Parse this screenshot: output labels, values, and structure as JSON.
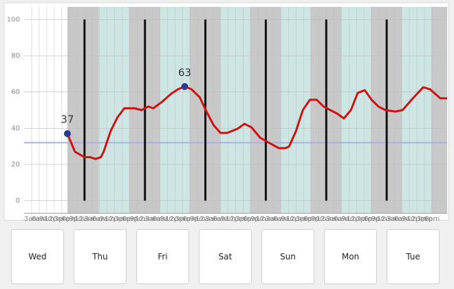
{
  "chart_data": {
    "type": "line",
    "xlim": [
      0,
      168
    ],
    "ylim": [
      -7,
      107
    ],
    "yticks": [
      0,
      20,
      40,
      60,
      80,
      100
    ],
    "xticks": [
      {
        "value": 3,
        "label": "3am"
      },
      {
        "value": 6,
        "label": "6am"
      },
      {
        "value": 9,
        "label": "9am"
      },
      {
        "value": 12,
        "label": "12pm"
      },
      {
        "value": 15,
        "label": "3pm"
      },
      {
        "value": 18,
        "label": "6pm"
      },
      {
        "value": 21,
        "label": "9pm"
      },
      {
        "value": 24,
        "label": "12am"
      },
      {
        "value": 27,
        "label": "3am"
      },
      {
        "value": 30,
        "label": "6am"
      },
      {
        "value": 33,
        "label": "9am"
      },
      {
        "value": 36,
        "label": "12pm"
      },
      {
        "value": 39,
        "label": "3pm"
      },
      {
        "value": 42,
        "label": "6pm"
      },
      {
        "value": 45,
        "label": "9pm"
      },
      {
        "value": 48,
        "label": "12am"
      },
      {
        "value": 51,
        "label": "3am"
      },
      {
        "value": 54,
        "label": "6am"
      },
      {
        "value": 57,
        "label": "9am"
      },
      {
        "value": 60,
        "label": "12pm"
      },
      {
        "value": 63,
        "label": "3pm"
      },
      {
        "value": 66,
        "label": "6pm"
      },
      {
        "value": 69,
        "label": "9pm"
      },
      {
        "value": 72,
        "label": "12am"
      },
      {
        "value": 75,
        "label": "3am"
      },
      {
        "value": 78,
        "label": "6am"
      },
      {
        "value": 81,
        "label": "9am"
      },
      {
        "value": 84,
        "label": "12pm"
      },
      {
        "value": 87,
        "label": "3pm"
      },
      {
        "value": 90,
        "label": "6pm"
      },
      {
        "value": 93,
        "label": "9pm"
      },
      {
        "value": 96,
        "label": "12am"
      },
      {
        "value": 99,
        "label": "3am"
      },
      {
        "value": 102,
        "label": "6am"
      },
      {
        "value": 105,
        "label": "9am"
      },
      {
        "value": 108,
        "label": "12pm"
      },
      {
        "value": 111,
        "label": "3pm"
      },
      {
        "value": 114,
        "label": "6pm"
      },
      {
        "value": 117,
        "label": "9pm"
      },
      {
        "value": 120,
        "label": "12am"
      },
      {
        "value": 123,
        "label": "3am"
      },
      {
        "value": 126,
        "label": "6am"
      },
      {
        "value": 129,
        "label": "9am"
      },
      {
        "value": 132,
        "label": "12pm"
      },
      {
        "value": 135,
        "label": "3pm"
      },
      {
        "value": 138,
        "label": "6pm"
      },
      {
        "value": 141,
        "label": "9pm"
      },
      {
        "value": 144,
        "label": "12am"
      },
      {
        "value": 147,
        "label": "3am"
      },
      {
        "value": 150,
        "label": "6am"
      },
      {
        "value": 153,
        "label": "9am"
      },
      {
        "value": 156,
        "label": "12pm"
      },
      {
        "value": 159,
        "label": "3pm"
      },
      {
        "value": 162,
        "label": "6pm"
      }
    ],
    "grid": true,
    "shading": [
      {
        "from": 17.2,
        "to": 29.7,
        "color": "#c8c8c8"
      },
      {
        "from": 29.7,
        "to": 41.7,
        "color": "#cde6e4"
      },
      {
        "from": 41.7,
        "to": 54,
        "color": "#c8c8c8"
      },
      {
        "from": 54,
        "to": 65.7,
        "color": "#cde6e4"
      },
      {
        "from": 65.7,
        "to": 78,
        "color": "#c8c8c8"
      },
      {
        "from": 78,
        "to": 89.7,
        "color": "#cde6e4"
      },
      {
        "from": 89.7,
        "to": 102,
        "color": "#c8c8c8"
      },
      {
        "from": 102,
        "to": 113.7,
        "color": "#cde6e4"
      },
      {
        "from": 113.7,
        "to": 126,
        "color": "#c8c8c8"
      },
      {
        "from": 126,
        "to": 137.7,
        "color": "#cde6e4"
      },
      {
        "from": 137.7,
        "to": 150,
        "color": "#c8c8c8"
      },
      {
        "from": 150,
        "to": 161.7,
        "color": "#cde6e4"
      },
      {
        "from": 161.7,
        "to": 168,
        "color": "#c8c8c8"
      }
    ],
    "day_lines": [
      24,
      48,
      72,
      96,
      120,
      144
    ],
    "day_line_range": [
      0,
      100
    ],
    "day_line_color": "#111111",
    "reference_line": 32,
    "reference_color": "#a9b0e6",
    "x": [
      17.2,
      20.2,
      24,
      26.2,
      28.4,
      30.5,
      31.6,
      34.4,
      37.1,
      39.8,
      43.9,
      46.6,
      49.4,
      51.3,
      54.8,
      58.4,
      61.1,
      63.8,
      66.5,
      69.8,
      72.5,
      75.3,
      78,
      80.7,
      84.8,
      87.5,
      90.3,
      93.8,
      98.5,
      101.2,
      103.9,
      105.3,
      108,
      110.7,
      113.5,
      116.2,
      118.9,
      121.6,
      124.4,
      127,
      129.8,
      132.5,
      135.3,
      138,
      140.7,
      143.5,
      147.5,
      150.3,
      154.4,
      158.5,
      161.2,
      165.3,
      168
    ],
    "series": [
      {
        "color": "#cc1111",
        "values": [
          37,
          27,
          24,
          24,
          23,
          24,
          27,
          38.5,
          46,
          51,
          51,
          50,
          52,
          51,
          54.6,
          59,
          61.5,
          63,
          61.5,
          57,
          49,
          41.6,
          37.4,
          37.4,
          39.7,
          42.4,
          40.5,
          34.7,
          31,
          29,
          29,
          30,
          38.5,
          50,
          55.7,
          55.7,
          52,
          50,
          48,
          45.4,
          50,
          59.5,
          61,
          55.7,
          52,
          50,
          49.2,
          50,
          56.5,
          62.6,
          61.5,
          56.5,
          56.5
        ]
      }
    ],
    "points": [
      {
        "x": 17.2,
        "value": 37
      },
      {
        "x": 63.8,
        "value": 63
      }
    ],
    "point_color": "#2b3a8c"
  },
  "buttons": [
    "Wed",
    "Thu",
    "Fri",
    "Sat",
    "Sun",
    "Mon",
    "Tue"
  ]
}
